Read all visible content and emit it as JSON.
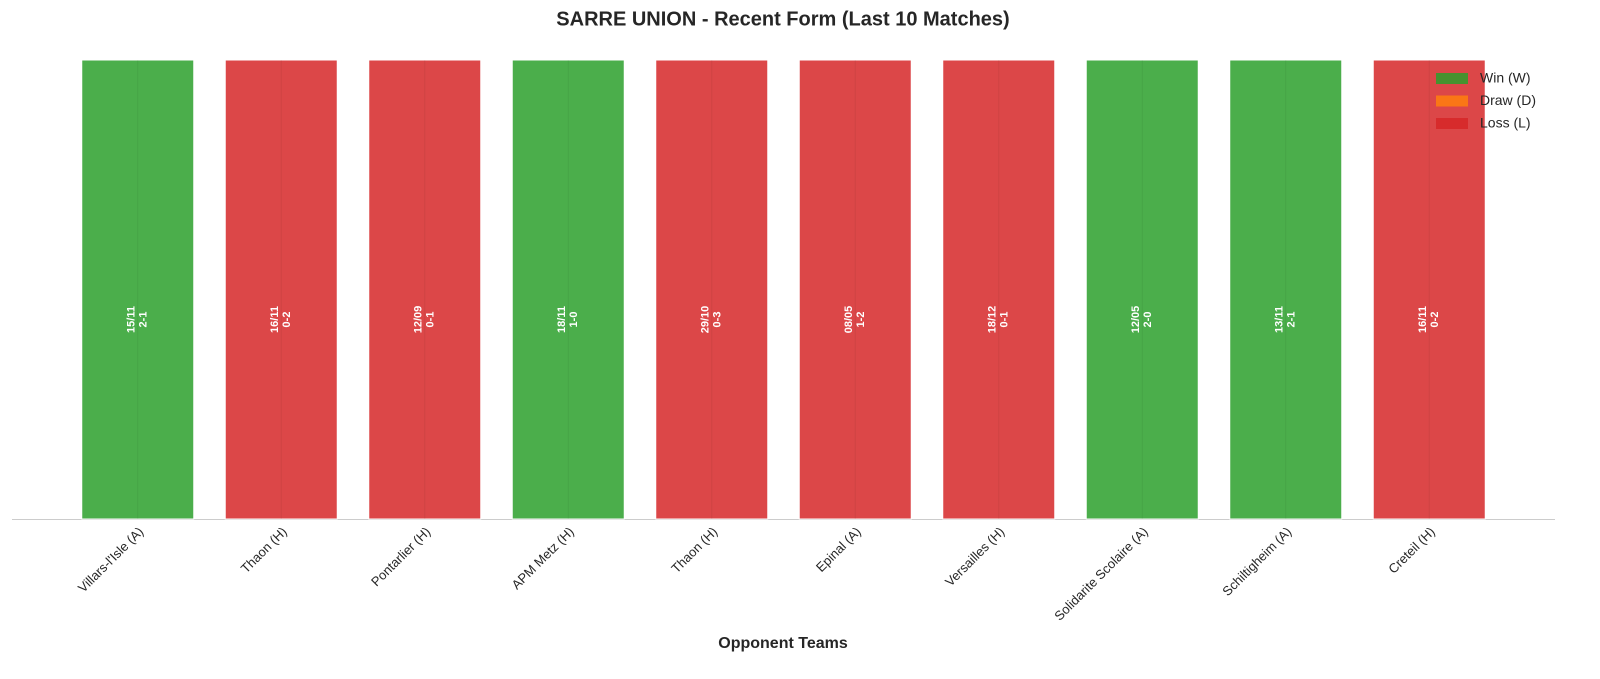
{
  "chart_data": {
    "type": "bar",
    "title": "SARRE UNION - Recent Form (Last 10 Matches)",
    "x_label": "Opponent Teams",
    "categories": [
      "Villars-l'Isle (A)",
      "Thaon (H)",
      "Pontarlier (H)",
      "APM Metz (H)",
      "Thaon (H)",
      "Epinal (A)",
      "Versailles (H)",
      "Solidarite Scolaire (A)",
      "Schiltigheim (A)",
      "Creteil (H)"
    ],
    "values": [
      1,
      1,
      1,
      1,
      1,
      1,
      1,
      1,
      1,
      1
    ],
    "dates": [
      "15/11",
      "16/11",
      "12/09",
      "18/11",
      "29/10",
      "08/05",
      "18/12",
      "12/05",
      "13/11",
      "16/11"
    ],
    "scores": [
      "2-1",
      "0-2",
      "0-1",
      "1-0",
      "0-3",
      "1-2",
      "0-1",
      "2-0",
      "2-1",
      "0-2"
    ],
    "colors": [
      "#2ca02c",
      "#d62728",
      "#d62728",
      "#2ca02c",
      "#d62728",
      "#d62728",
      "#d62728",
      "#2ca02c",
      "#2ca02c",
      "#d62728"
    ],
    "ylim": [
      0,
      1
    ],
    "legend": [
      {
        "name": "Win (W)",
        "color": "#2ca02c"
      },
      {
        "name": "Draw (D)",
        "color": "#ff7f0e"
      },
      {
        "name": "Loss (L)",
        "color": "#d62728"
      }
    ],
    "legend_position": "upper right"
  }
}
